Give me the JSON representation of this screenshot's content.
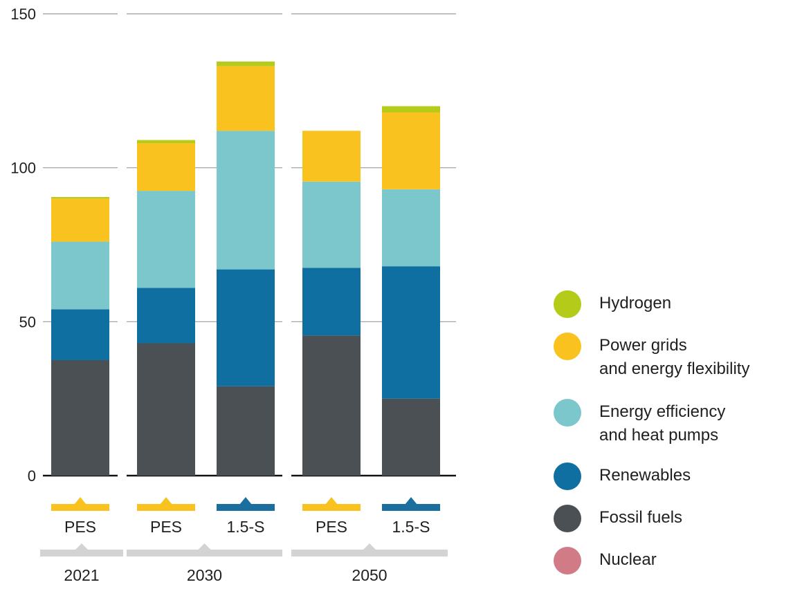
{
  "chart_data": {
    "type": "bar",
    "stacked": true,
    "yticks": [
      0,
      50,
      100,
      150
    ],
    "ylim": [
      0,
      150
    ],
    "grid": true,
    "legend_position": "right",
    "groups": [
      {
        "year": "2021",
        "bars": [
          "PES"
        ]
      },
      {
        "year": "2030",
        "bars": [
          "PES",
          "1.5-S"
        ]
      },
      {
        "year": "2050",
        "bars": [
          "PES",
          "1.5-S"
        ]
      }
    ],
    "categories": [
      "2021 PES",
      "2030 PES",
      "2030 1.5-S",
      "2050 PES",
      "2050 1.5-S"
    ],
    "scenario_colors": {
      "PES": "#f9c21f",
      "1.5-S": "#1a6f9f"
    },
    "series": [
      {
        "name": "Nuclear",
        "color": "#d17b86",
        "values": [
          0,
          0,
          0,
          0,
          0
        ]
      },
      {
        "name": "Fossil fuels",
        "color": "#4a5054",
        "values": [
          37.5,
          43,
          29,
          45.5,
          25
        ]
      },
      {
        "name": "Renewables",
        "color": "#0f6fa0",
        "values": [
          16.5,
          18,
          38,
          22,
          43
        ]
      },
      {
        "name": "Energy efficiency\nand heat pumps",
        "color": "#7cc7cb",
        "values": [
          22,
          31.5,
          45,
          28,
          25
        ]
      },
      {
        "name": "Power grids\nand energy flexibility",
        "color": "#f9c21f",
        "values": [
          14,
          15.5,
          21,
          16.5,
          25
        ]
      },
      {
        "name": "Hydrogen",
        "color": "#b5cb1a",
        "values": [
          0.5,
          1,
          1.5,
          0,
          2
        ]
      }
    ],
    "legend_order": [
      "Hydrogen",
      "Power grids\nand energy flexibility",
      "Energy efficiency\nand heat pumps",
      "Renewables",
      "Fossil fuels",
      "Nuclear"
    ]
  }
}
